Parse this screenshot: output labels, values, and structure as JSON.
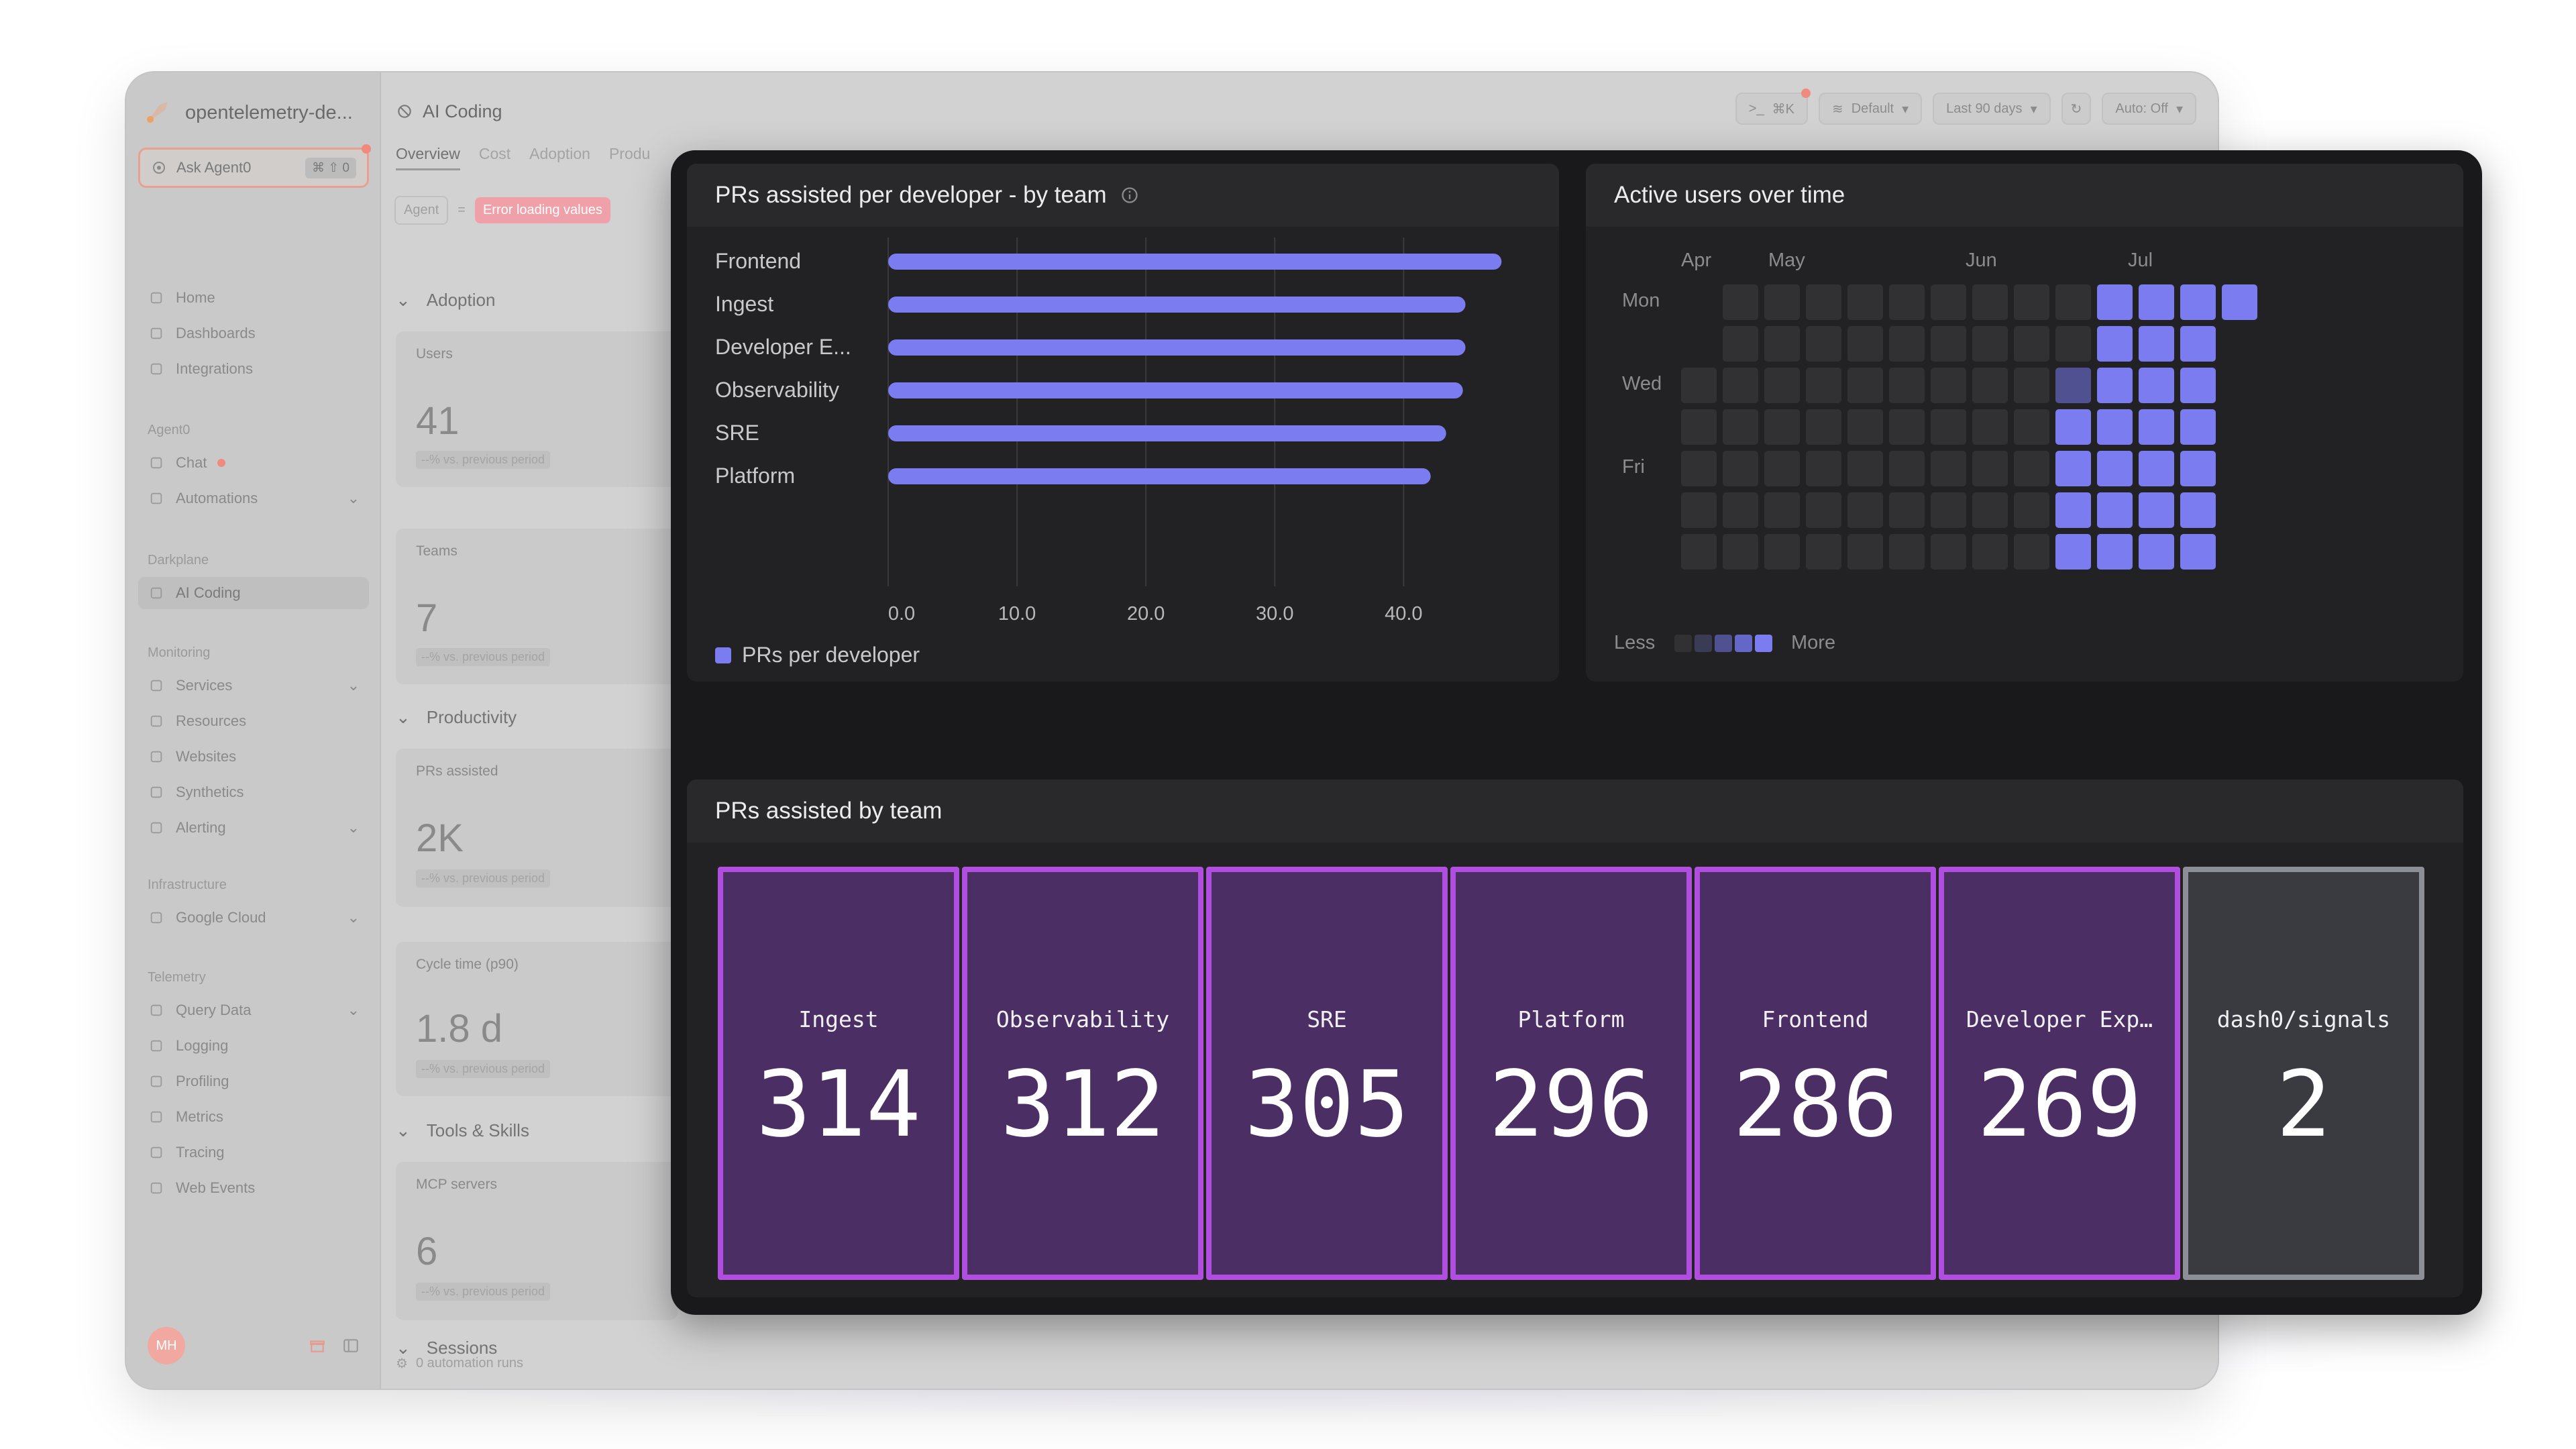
{
  "app": {
    "org_name": "opentelemetry-de...",
    "ask_label": "Ask Agent0",
    "ask_shortcut": "⌘ ⇧ 0",
    "page_title": "AI Coding",
    "tabs": [
      "Overview",
      "Cost",
      "Adoption",
      "Produ"
    ],
    "filter_agent": "Agent",
    "filter_eq": "=",
    "filter_error": "Error loading values",
    "toolbar": {
      "command": "⌘K",
      "dataset": "Default",
      "timerange": "Last 90 days",
      "refresh": "Auto: Off"
    },
    "nav_main": [
      {
        "label": "Home",
        "icon": "home-icon"
      },
      {
        "label": "Dashboards",
        "icon": "dashboards-icon"
      },
      {
        "label": "Integrations",
        "icon": "integrations-icon"
      }
    ],
    "section_agent": "Agent0",
    "nav_agent": [
      {
        "label": "Chat",
        "icon": "chat-icon"
      },
      {
        "label": "Automations",
        "icon": "automations-icon"
      }
    ],
    "section_darkplane": "Darkplane",
    "nav_darkplane": [
      {
        "label": "AI Coding",
        "icon": "ai-coding-icon"
      }
    ],
    "section_monitoring": "Monitoring",
    "nav_monitoring": [
      {
        "label": "Services",
        "icon": "services-icon"
      },
      {
        "label": "Resources",
        "icon": "resources-icon"
      },
      {
        "label": "Websites",
        "icon": "websites-icon"
      },
      {
        "label": "Synthetics",
        "icon": "synthetics-icon"
      },
      {
        "label": "Alerting",
        "icon": "alerting-icon"
      }
    ],
    "section_infrastructure": "Infrastructure",
    "nav_infrastructure": [
      {
        "label": "Google Cloud",
        "icon": "cloud-icon"
      }
    ],
    "section_telemetry": "Telemetry",
    "nav_telemetry": [
      {
        "label": "Query Data",
        "icon": "query-icon"
      },
      {
        "label": "Logging",
        "icon": "logging-icon"
      },
      {
        "label": "Profiling",
        "icon": "profiling-icon"
      },
      {
        "label": "Metrics",
        "icon": "metrics-icon"
      },
      {
        "label": "Tracing",
        "icon": "tracing-icon"
      },
      {
        "label": "Web Events",
        "icon": "web-events-icon"
      }
    ],
    "avatar": "MH",
    "groups": {
      "adoption": "Adoption",
      "productivity": "Productivity",
      "tools": "Tools & Skills",
      "sessions": "Sessions"
    },
    "cards": {
      "users": {
        "label": "Users",
        "value": "41",
        "delta": "--% vs. previous period"
      },
      "teams": {
        "label": "Teams",
        "value": "7",
        "delta": "--% vs. previous period"
      },
      "prs": {
        "label": "PRs assisted",
        "value": "2K",
        "delta": "--% vs. previous period"
      },
      "cycle": {
        "label": "Cycle time (p90)",
        "value": "1.8 d",
        "delta": "--% vs. previous period"
      },
      "mcp": {
        "label": "MCP servers",
        "value": "6",
        "delta": "--% vs. previous period"
      }
    },
    "footer": "0 automation runs"
  },
  "bar_chart": {
    "title": "PRs assisted per developer - by team",
    "legend": "PRs per developer",
    "color": "#7a7cf0"
  },
  "heatmap": {
    "title": "Active users over time",
    "months": [
      "Apr",
      "May",
      "Jun",
      "Jul"
    ],
    "days": [
      "Mon",
      "Wed",
      "Fri"
    ],
    "legend_less": "Less",
    "legend_more": "More",
    "colors": {
      "empty": "#313134",
      "low": "#4f5190",
      "high": "#7a7cf0"
    }
  },
  "tiles_panel": {
    "title": "PRs assisted by team",
    "tiles": [
      {
        "label": "Ingest",
        "value": "314",
        "style": "purple"
      },
      {
        "label": "Observability",
        "value": "312",
        "style": "purple"
      },
      {
        "label": "SRE",
        "value": "305",
        "style": "purple"
      },
      {
        "label": "Platform",
        "value": "296",
        "style": "purple"
      },
      {
        "label": "Frontend",
        "value": "286",
        "style": "purple"
      },
      {
        "label": "Developer Exp…",
        "value": "269",
        "style": "purple"
      },
      {
        "label": "dash0/signals",
        "value": "2",
        "style": "gray"
      }
    ]
  },
  "chart_data": {
    "type": "bar",
    "orientation": "horizontal",
    "title": "PRs assisted per developer - by team",
    "categories": [
      "Frontend",
      "Ingest",
      "Developer E...",
      "Observability",
      "SRE",
      "Platform"
    ],
    "series": [
      {
        "name": "PRs per developer",
        "values": [
          47.6,
          44.8,
          44.8,
          44.6,
          43.3,
          42.1
        ]
      }
    ],
    "x_ticks": [
      "0.0",
      "10.0",
      "20.0",
      "30.0",
      "40.0"
    ],
    "xlim": [
      0,
      48
    ],
    "grid": true,
    "legend": "bottom-left"
  }
}
